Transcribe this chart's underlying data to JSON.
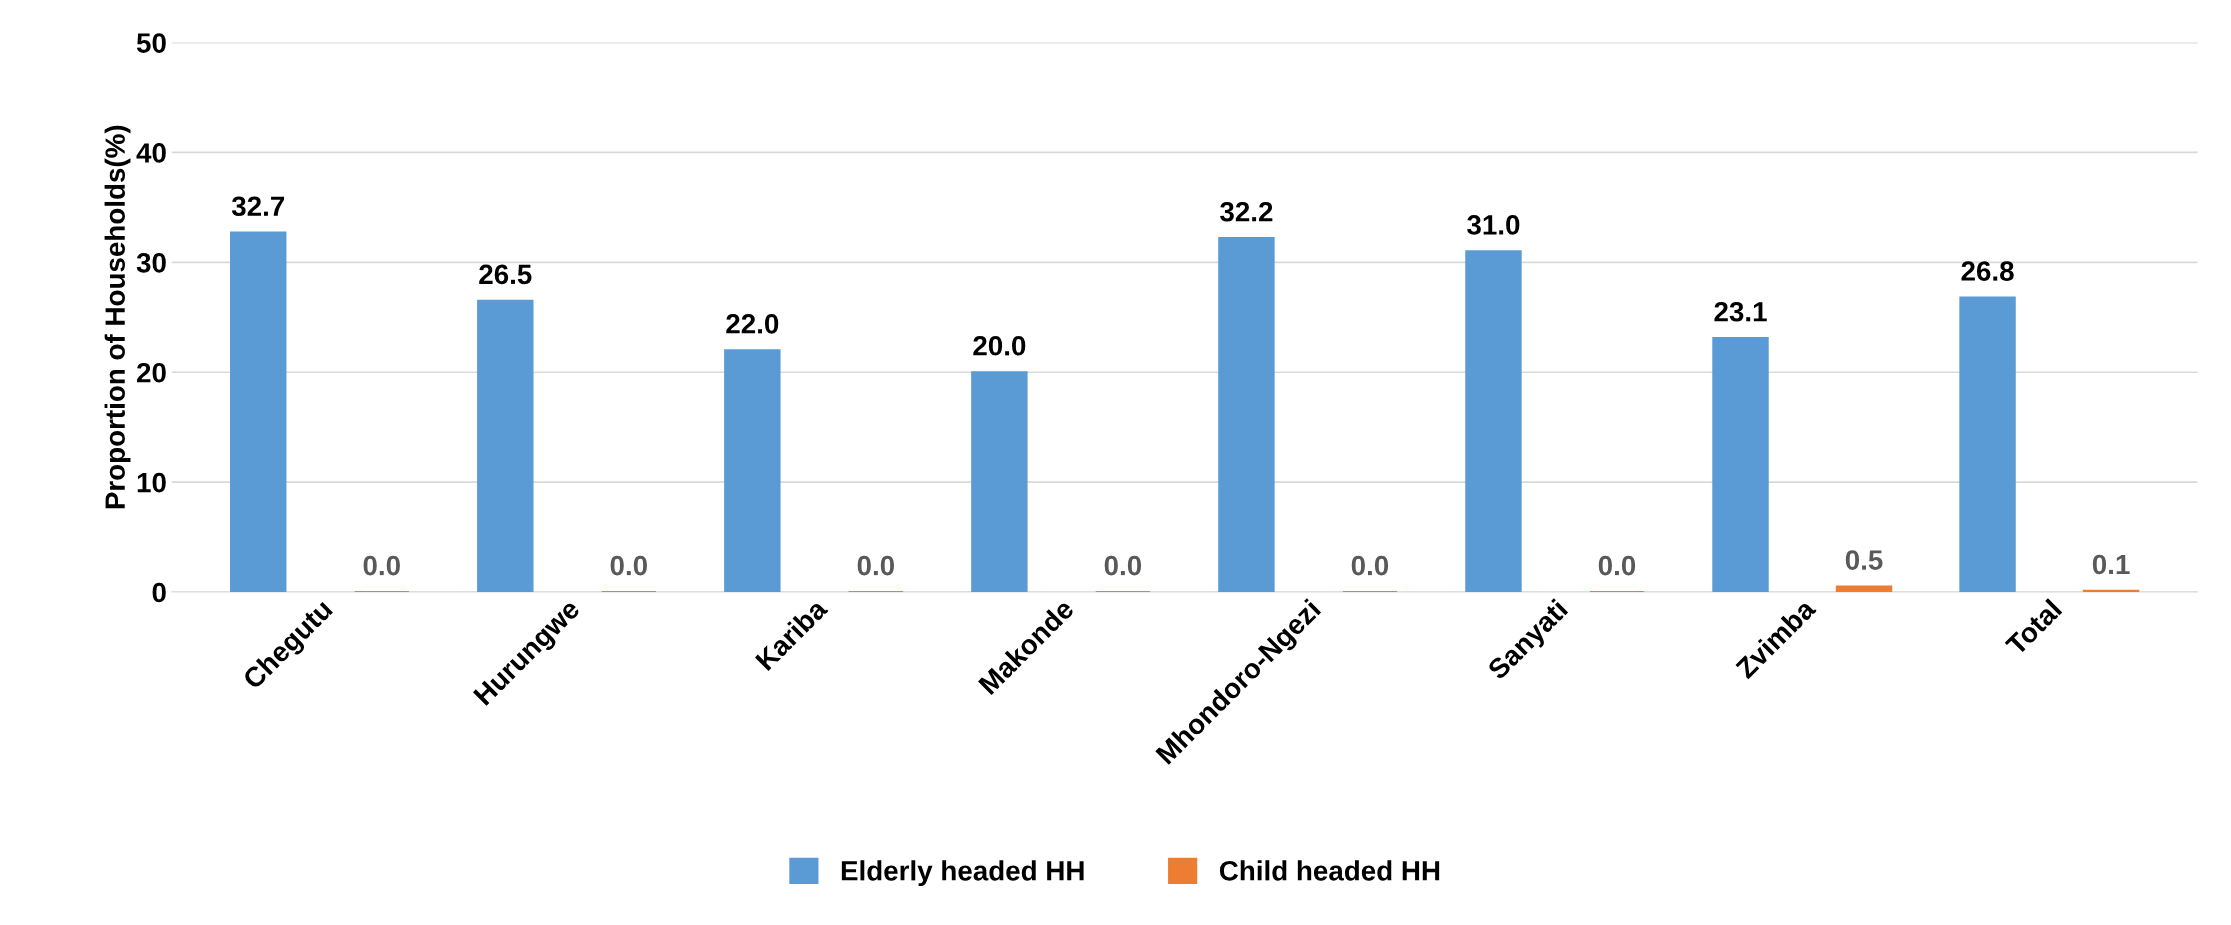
{
  "chart_data": {
    "type": "bar",
    "ylabel": "Proportion of Households(%)",
    "categories": [
      "Chegutu",
      "Hurungwe",
      "Kariba",
      "Makonde",
      "Mhondoro-Ngezi",
      "Sanyati",
      "Zvimba",
      "Total"
    ],
    "series": [
      {
        "name": "Elderly headed HH",
        "color": "#5b9bd5",
        "values": [
          32.7,
          26.5,
          22.0,
          20.0,
          32.2,
          31.0,
          23.1,
          26.8
        ],
        "value_labels": [
          "32.7",
          "26.5",
          "22.0",
          "20.0",
          "32.2",
          "31.0",
          "23.1",
          "26.8"
        ]
      },
      {
        "name": "Child headed HH",
        "color": "#ed7d31",
        "values": [
          0.0,
          0.0,
          0.0,
          0.0,
          0.0,
          0.0,
          0.5,
          0.1
        ],
        "value_labels": [
          "0.0",
          "0.0",
          "0.0",
          "0.0",
          "0.0",
          "0.0",
          "0.5",
          "0.1"
        ]
      }
    ],
    "ylim": [
      0,
      50
    ],
    "yticks": [
      0,
      10,
      20,
      30,
      40,
      50
    ],
    "grid": "y",
    "legend": "bottom"
  }
}
